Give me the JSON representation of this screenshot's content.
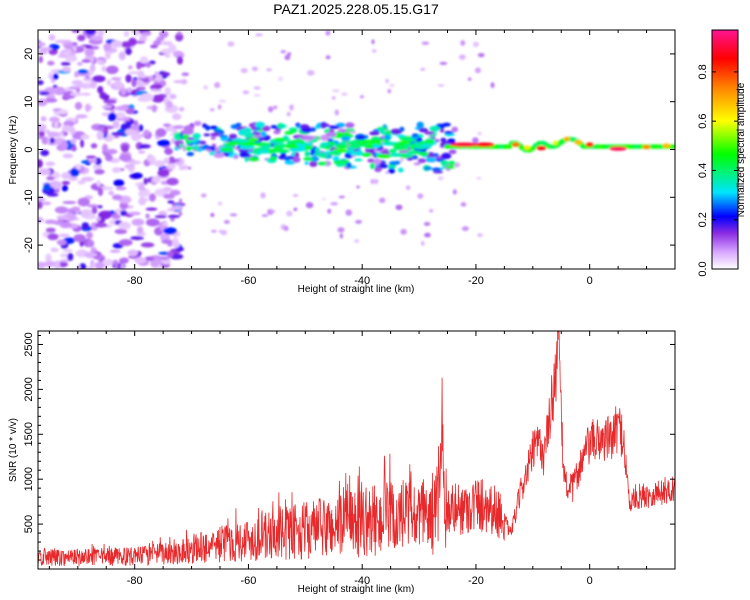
{
  "title": "PAZ1.2025.228.05.15.G17",
  "chart_data": [
    {
      "type": "heatmap",
      "xlabel": "Height of straight line (km)",
      "ylabel": "Frequency (Hz)",
      "xlim": [
        -97,
        15
      ],
      "ylim": [
        -25,
        25
      ],
      "xticks": [
        -80,
        -60,
        -40,
        -20,
        0
      ],
      "yticks": [
        -20,
        -10,
        0,
        10,
        20
      ],
      "colorbar": {
        "label": "Normalized spectral amplitude",
        "range": [
          0,
          0.97
        ],
        "ticks": [
          0.0,
          0.2,
          0.4,
          0.6,
          0.8
        ],
        "colors": [
          "#ffffff",
          "#d8a8ff",
          "#8a2be2",
          "#0000ff",
          "#00e5ff",
          "#00ff00",
          "#ffff00",
          "#ff8c00",
          "#ff0000",
          "#ff1493"
        ]
      },
      "regions": [
        {
          "name": "scattered",
          "x_range": [
            -97,
            -73
          ],
          "freq_range": [
            -25,
            25
          ],
          "level": "0.05-0.3"
        },
        {
          "name": "signal band",
          "x_range": [
            -73,
            -25
          ],
          "freq_center": 1,
          "width": 3,
          "level": "0.2-0.5"
        },
        {
          "name": "coherent tone",
          "x_range": [
            -25,
            15
          ],
          "freq_center": 0.5,
          "level": "0.6-0.97"
        }
      ]
    },
    {
      "type": "line",
      "xlabel": "Height of straight line (km)",
      "ylabel": "SNR (10 * v/v)",
      "xlim": [
        -97,
        15
      ],
      "ylim": [
        0,
        2650
      ],
      "xticks": [
        -80,
        -60,
        -40,
        -20,
        0
      ],
      "yticks": [
        500,
        1000,
        1500,
        2000,
        2500
      ],
      "color": "#e8292b",
      "envelope": {
        "x": [
          -97,
          -90,
          -80,
          -75,
          -70,
          -65,
          -60,
          -55,
          -50,
          -45,
          -40,
          -35,
          -30,
          -27,
          -26,
          -25,
          -22,
          -20,
          -18,
          -16,
          -15,
          -14,
          -13,
          -12,
          -11,
          -10,
          -9,
          -8,
          -7,
          -6,
          -5.5,
          -5,
          -4.5,
          -4,
          -3,
          -2,
          0,
          2,
          4,
          5,
          6,
          6.5,
          7,
          8,
          10,
          12,
          15
        ],
        "y": [
          130,
          130,
          140,
          170,
          220,
          280,
          330,
          380,
          430,
          470,
          520,
          560,
          560,
          630,
          1100,
          650,
          680,
          720,
          720,
          620,
          560,
          380,
          620,
          900,
          1080,
          1300,
          1400,
          1250,
          1700,
          2200,
          2600,
          1650,
          1050,
          920,
          900,
          1100,
          1400,
          1450,
          1450,
          1600,
          1450,
          1050,
          720,
          800,
          820,
          850,
          900
        ]
      }
    }
  ]
}
